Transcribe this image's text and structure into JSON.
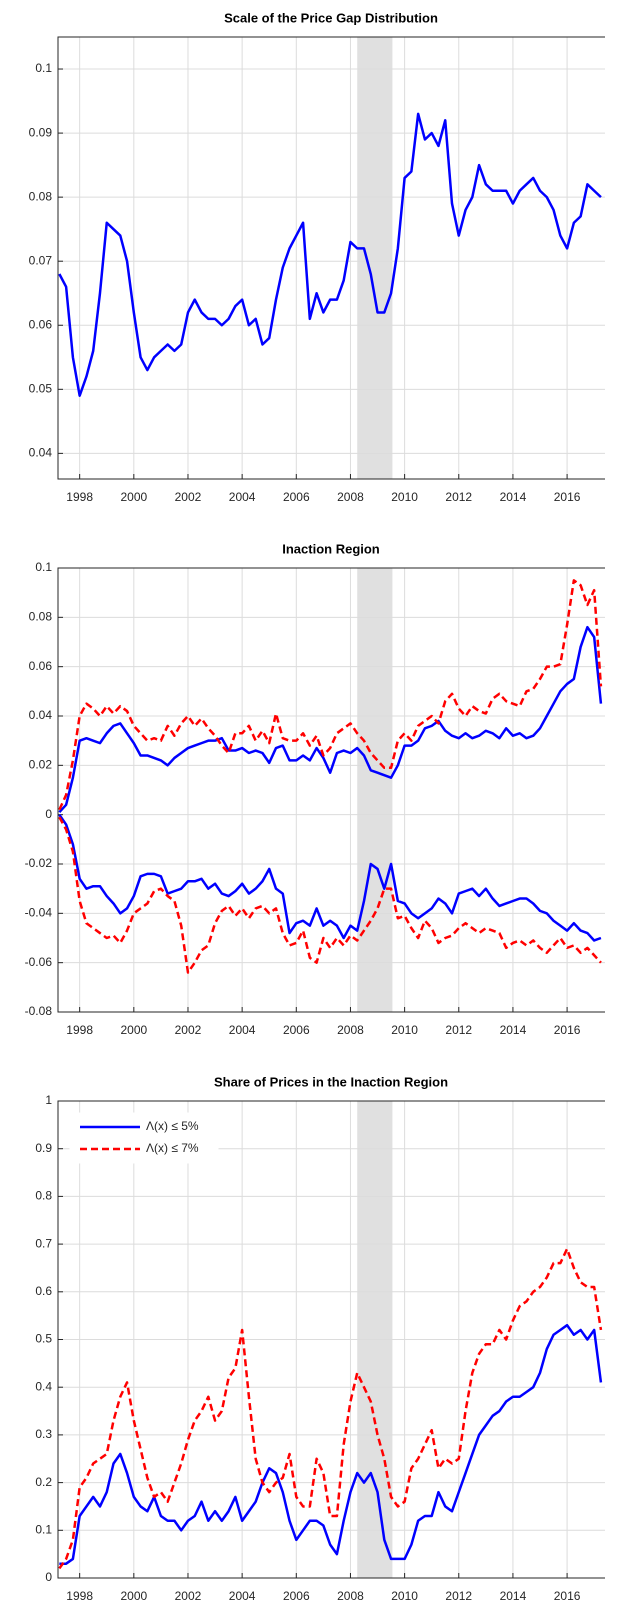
{
  "chart_data": [
    {
      "type": "line",
      "title": "Scale of the Price Gap Distribution",
      "x": [
        1997.25,
        1997.5,
        1997.75,
        1998,
        1998.25,
        1998.5,
        1998.75,
        1999,
        1999.25,
        1999.5,
        1999.75,
        2000,
        2000.25,
        2000.5,
        2000.75,
        2001,
        2001.25,
        2001.5,
        2001.75,
        2002,
        2002.25,
        2002.5,
        2002.75,
        2003,
        2003.25,
        2003.5,
        2003.75,
        2004,
        2004.25,
        2004.5,
        2004.75,
        2005,
        2005.25,
        2005.5,
        2005.75,
        2006,
        2006.25,
        2006.5,
        2006.75,
        2007,
        2007.25,
        2007.5,
        2007.75,
        2008,
        2008.25,
        2008.5,
        2008.75,
        2009,
        2009.25,
        2009.5,
        2009.75,
        2010,
        2010.25,
        2010.5,
        2010.75,
        2011,
        2011.25,
        2011.5,
        2011.75,
        2012,
        2012.25,
        2012.5,
        2012.75,
        2013,
        2013.25,
        2013.5,
        2013.75,
        2014,
        2014.25,
        2014.5,
        2014.75,
        2015,
        2015.25,
        2015.5,
        2015.75,
        2016,
        2016.25,
        2016.5,
        2016.75,
        2017,
        2017.25
      ],
      "series": [
        {
          "color": "#0000ff",
          "dashed": false,
          "values": [
            0.068,
            0.066,
            0.055,
            0.049,
            0.052,
            0.056,
            0.065,
            0.076,
            0.075,
            0.074,
            0.07,
            0.062,
            0.055,
            0.053,
            0.055,
            0.056,
            0.057,
            0.056,
            0.057,
            0.062,
            0.064,
            0.062,
            0.061,
            0.061,
            0.06,
            0.061,
            0.063,
            0.064,
            0.06,
            0.061,
            0.057,
            0.058,
            0.064,
            0.069,
            0.072,
            0.074,
            0.076,
            0.061,
            0.065,
            0.062,
            0.064,
            0.064,
            0.067,
            0.073,
            0.072,
            0.072,
            0.068,
            0.062,
            0.062,
            0.065,
            0.072,
            0.083,
            0.084,
            0.093,
            0.089,
            0.09,
            0.088,
            0.092,
            0.079,
            0.074,
            0.078,
            0.08,
            0.085,
            0.082,
            0.081,
            0.081,
            0.081,
            0.079,
            0.081,
            0.082,
            0.083,
            0.081,
            0.08,
            0.078,
            0.074,
            0.072,
            0.076,
            0.077,
            0.082,
            0.081,
            0.08
          ]
        }
      ],
      "xlim": [
        1997.2,
        2017.4
      ],
      "xticks": [
        1998,
        2000,
        2002,
        2004,
        2006,
        2008,
        2010,
        2012,
        2014,
        2016
      ],
      "ylim": [
        0.036,
        0.105
      ],
      "yticks": [
        0.04,
        0.05,
        0.06,
        0.07,
        0.08,
        0.09,
        0.1
      ],
      "grid": true,
      "shaded_span": [
        2008.25,
        2009.55
      ],
      "shade_color": "#e0e0e0"
    },
    {
      "type": "line",
      "title": "Inaction Region",
      "x": [
        1997.25,
        1997.5,
        1997.75,
        1998,
        1998.25,
        1998.5,
        1998.75,
        1999,
        1999.25,
        1999.5,
        1999.75,
        2000,
        2000.25,
        2000.5,
        2000.75,
        2001,
        2001.25,
        2001.5,
        2001.75,
        2002,
        2002.25,
        2002.5,
        2002.75,
        2003,
        2003.25,
        2003.5,
        2003.75,
        2004,
        2004.25,
        2004.5,
        2004.75,
        2005,
        2005.25,
        2005.5,
        2005.75,
        2006,
        2006.25,
        2006.5,
        2006.75,
        2007,
        2007.25,
        2007.5,
        2007.75,
        2008,
        2008.25,
        2008.5,
        2008.75,
        2009,
        2009.25,
        2009.5,
        2009.75,
        2010,
        2010.25,
        2010.5,
        2010.75,
        2011,
        2011.25,
        2011.5,
        2011.75,
        2012,
        2012.25,
        2012.5,
        2012.75,
        2013,
        2013.25,
        2013.5,
        2013.75,
        2014,
        2014.25,
        2014.5,
        2014.75,
        2015,
        2015.25,
        2015.5,
        2015.75,
        2016,
        2016.25,
        2016.5,
        2016.75,
        2017,
        2017.25
      ],
      "series": [
        {
          "color": "#0000ff",
          "dashed": false,
          "values": [
            0.001,
            0.004,
            0.015,
            0.03,
            0.031,
            0.03,
            0.029,
            0.033,
            0.036,
            0.037,
            0.033,
            0.029,
            0.024,
            0.024,
            0.023,
            0.022,
            0.02,
            0.023,
            0.025,
            0.027,
            0.028,
            0.029,
            0.03,
            0.03,
            0.031,
            0.026,
            0.026,
            0.027,
            0.025,
            0.026,
            0.025,
            0.021,
            0.027,
            0.028,
            0.022,
            0.022,
            0.024,
            0.022,
            0.027,
            0.023,
            0.017,
            0.025,
            0.026,
            0.025,
            0.027,
            0.024,
            0.018,
            0.017,
            0.016,
            0.015,
            0.02,
            0.028,
            0.028,
            0.03,
            0.035,
            0.036,
            0.038,
            0.034,
            0.032,
            0.031,
            0.033,
            0.031,
            0.032,
            0.034,
            0.033,
            0.031,
            0.035,
            0.032,
            0.033,
            0.031,
            0.032,
            0.035,
            0.04,
            0.045,
            0.05,
            0.053,
            0.055,
            0.068,
            0.076,
            0.072,
            0.045
          ]
        },
        {
          "color": "#ff0000",
          "dashed": true,
          "values": [
            0.002,
            0.008,
            0.022,
            0.04,
            0.045,
            0.043,
            0.04,
            0.044,
            0.041,
            0.044,
            0.042,
            0.036,
            0.033,
            0.03,
            0.031,
            0.03,
            0.036,
            0.032,
            0.037,
            0.04,
            0.036,
            0.039,
            0.035,
            0.032,
            0.028,
            0.025,
            0.033,
            0.033,
            0.036,
            0.03,
            0.034,
            0.029,
            0.041,
            0.031,
            0.03,
            0.03,
            0.033,
            0.028,
            0.032,
            0.024,
            0.027,
            0.033,
            0.035,
            0.037,
            0.033,
            0.03,
            0.025,
            0.022,
            0.019,
            0.019,
            0.03,
            0.033,
            0.03,
            0.036,
            0.038,
            0.04,
            0.037,
            0.046,
            0.049,
            0.043,
            0.04,
            0.044,
            0.042,
            0.041,
            0.047,
            0.049,
            0.046,
            0.045,
            0.044,
            0.05,
            0.051,
            0.055,
            0.06,
            0.06,
            0.061,
            0.077,
            0.095,
            0.093,
            0.085,
            0.091,
            0.052
          ]
        },
        {
          "color": "#0000ff",
          "dashed": false,
          "values": [
            0,
            -0.004,
            -0.012,
            -0.026,
            -0.03,
            -0.029,
            -0.029,
            -0.033,
            -0.036,
            -0.04,
            -0.038,
            -0.033,
            -0.025,
            -0.024,
            -0.024,
            -0.025,
            -0.032,
            -0.031,
            -0.03,
            -0.027,
            -0.027,
            -0.026,
            -0.03,
            -0.028,
            -0.032,
            -0.033,
            -0.031,
            -0.028,
            -0.032,
            -0.03,
            -0.027,
            -0.022,
            -0.03,
            -0.032,
            -0.048,
            -0.044,
            -0.043,
            -0.045,
            -0.038,
            -0.045,
            -0.043,
            -0.045,
            -0.05,
            -0.045,
            -0.047,
            -0.035,
            -0.02,
            -0.022,
            -0.03,
            -0.02,
            -0.035,
            -0.036,
            -0.04,
            -0.042,
            -0.04,
            -0.038,
            -0.034,
            -0.036,
            -0.04,
            -0.032,
            -0.031,
            -0.03,
            -0.033,
            -0.03,
            -0.034,
            -0.037,
            -0.036,
            -0.035,
            -0.034,
            -0.034,
            -0.036,
            -0.039,
            -0.04,
            -0.043,
            -0.045,
            -0.047,
            -0.044,
            -0.047,
            -0.048,
            -0.051,
            -0.05
          ]
        },
        {
          "color": "#ff0000",
          "dashed": true,
          "values": [
            -0.001,
            -0.006,
            -0.015,
            -0.035,
            -0.044,
            -0.046,
            -0.048,
            -0.05,
            -0.049,
            -0.052,
            -0.047,
            -0.04,
            -0.038,
            -0.036,
            -0.031,
            -0.03,
            -0.033,
            -0.035,
            -0.045,
            -0.064,
            -0.06,
            -0.055,
            -0.053,
            -0.044,
            -0.039,
            -0.037,
            -0.041,
            -0.038,
            -0.042,
            -0.038,
            -0.037,
            -0.04,
            -0.038,
            -0.048,
            -0.053,
            -0.052,
            -0.047,
            -0.058,
            -0.06,
            -0.05,
            -0.054,
            -0.05,
            -0.053,
            -0.049,
            -0.051,
            -0.047,
            -0.043,
            -0.038,
            -0.03,
            -0.03,
            -0.042,
            -0.041,
            -0.046,
            -0.05,
            -0.043,
            -0.046,
            -0.052,
            -0.05,
            -0.049,
            -0.046,
            -0.044,
            -0.046,
            -0.048,
            -0.046,
            -0.047,
            -0.048,
            -0.054,
            -0.052,
            -0.051,
            -0.053,
            -0.051,
            -0.054,
            -0.056,
            -0.053,
            -0.05,
            -0.054,
            -0.053,
            -0.056,
            -0.054,
            -0.057,
            -0.06
          ]
        }
      ],
      "xlim": [
        1997.2,
        2017.4
      ],
      "xticks": [
        1998,
        2000,
        2002,
        2004,
        2006,
        2008,
        2010,
        2012,
        2014,
        2016
      ],
      "ylim": [
        -0.08,
        0.1
      ],
      "yticks": [
        -0.08,
        -0.06,
        -0.04,
        -0.02,
        0,
        0.02,
        0.04,
        0.06,
        0.08,
        0.1
      ],
      "grid": true,
      "shaded_span": [
        2008.25,
        2009.55
      ],
      "shade_color": "#e0e0e0"
    },
    {
      "type": "line",
      "title": "Share of Prices in the Inaction Region",
      "x": [
        1997.25,
        1997.5,
        1997.75,
        1998,
        1998.25,
        1998.5,
        1998.75,
        1999,
        1999.25,
        1999.5,
        1999.75,
        2000,
        2000.25,
        2000.5,
        2000.75,
        2001,
        2001.25,
        2001.5,
        2001.75,
        2002,
        2002.25,
        2002.5,
        2002.75,
        2003,
        2003.25,
        2003.5,
        2003.75,
        2004,
        2004.25,
        2004.5,
        2004.75,
        2005,
        2005.25,
        2005.5,
        2005.75,
        2006,
        2006.25,
        2006.5,
        2006.75,
        2007,
        2007.25,
        2007.5,
        2007.75,
        2008,
        2008.25,
        2008.5,
        2008.75,
        2009,
        2009.25,
        2009.5,
        2009.75,
        2010,
        2010.25,
        2010.5,
        2010.75,
        2011,
        2011.25,
        2011.5,
        2011.75,
        2012,
        2012.25,
        2012.5,
        2012.75,
        2013,
        2013.25,
        2013.5,
        2013.75,
        2014,
        2014.25,
        2014.5,
        2014.75,
        2015,
        2015.25,
        2015.5,
        2015.75,
        2016,
        2016.25,
        2016.5,
        2016.75,
        2017,
        2017.25
      ],
      "series": [
        {
          "name": "Λ(x) ≤ 5%",
          "color": "#0000ff",
          "dashed": false,
          "values": [
            0.03,
            0.03,
            0.04,
            0.13,
            0.15,
            0.17,
            0.15,
            0.18,
            0.24,
            0.26,
            0.22,
            0.17,
            0.15,
            0.14,
            0.17,
            0.13,
            0.12,
            0.12,
            0.1,
            0.12,
            0.13,
            0.16,
            0.12,
            0.14,
            0.12,
            0.14,
            0.17,
            0.12,
            0.14,
            0.16,
            0.2,
            0.23,
            0.22,
            0.18,
            0.12,
            0.08,
            0.1,
            0.12,
            0.12,
            0.11,
            0.07,
            0.05,
            0.12,
            0.18,
            0.22,
            0.2,
            0.22,
            0.18,
            0.08,
            0.04,
            0.04,
            0.04,
            0.07,
            0.12,
            0.13,
            0.13,
            0.18,
            0.15,
            0.14,
            0.18,
            0.22,
            0.26,
            0.3,
            0.32,
            0.34,
            0.35,
            0.37,
            0.38,
            0.38,
            0.39,
            0.4,
            0.43,
            0.48,
            0.51,
            0.52,
            0.53,
            0.51,
            0.52,
            0.5,
            0.52,
            0.41
          ]
        },
        {
          "name": "Λ(x) ≤ 7%",
          "color": "#ff0000",
          "dashed": true,
          "values": [
            0.02,
            0.04,
            0.08,
            0.19,
            0.21,
            0.24,
            0.25,
            0.26,
            0.33,
            0.38,
            0.41,
            0.33,
            0.27,
            0.21,
            0.17,
            0.18,
            0.16,
            0.2,
            0.24,
            0.29,
            0.33,
            0.35,
            0.38,
            0.33,
            0.35,
            0.42,
            0.44,
            0.52,
            0.38,
            0.25,
            0.2,
            0.18,
            0.2,
            0.21,
            0.26,
            0.17,
            0.15,
            0.15,
            0.25,
            0.22,
            0.13,
            0.13,
            0.28,
            0.37,
            0.43,
            0.4,
            0.37,
            0.3,
            0.25,
            0.17,
            0.15,
            0.16,
            0.23,
            0.25,
            0.28,
            0.31,
            0.23,
            0.25,
            0.24,
            0.25,
            0.35,
            0.43,
            0.47,
            0.49,
            0.49,
            0.52,
            0.5,
            0.54,
            0.57,
            0.58,
            0.6,
            0.61,
            0.63,
            0.66,
            0.66,
            0.69,
            0.65,
            0.62,
            0.61,
            0.61,
            0.52
          ]
        }
      ],
      "xlim": [
        1997.2,
        2017.4
      ],
      "xticks": [
        1998,
        2000,
        2002,
        2004,
        2006,
        2008,
        2010,
        2012,
        2014,
        2016
      ],
      "ylim": [
        0,
        1
      ],
      "yticks": [
        0,
        0.1,
        0.2,
        0.3,
        0.4,
        0.5,
        0.6,
        0.7,
        0.8,
        0.9,
        1
      ],
      "grid": true,
      "legend": "upper left",
      "shaded_span": [
        2008.25,
        2009.55
      ],
      "shade_color": "#e0e0e0"
    }
  ]
}
